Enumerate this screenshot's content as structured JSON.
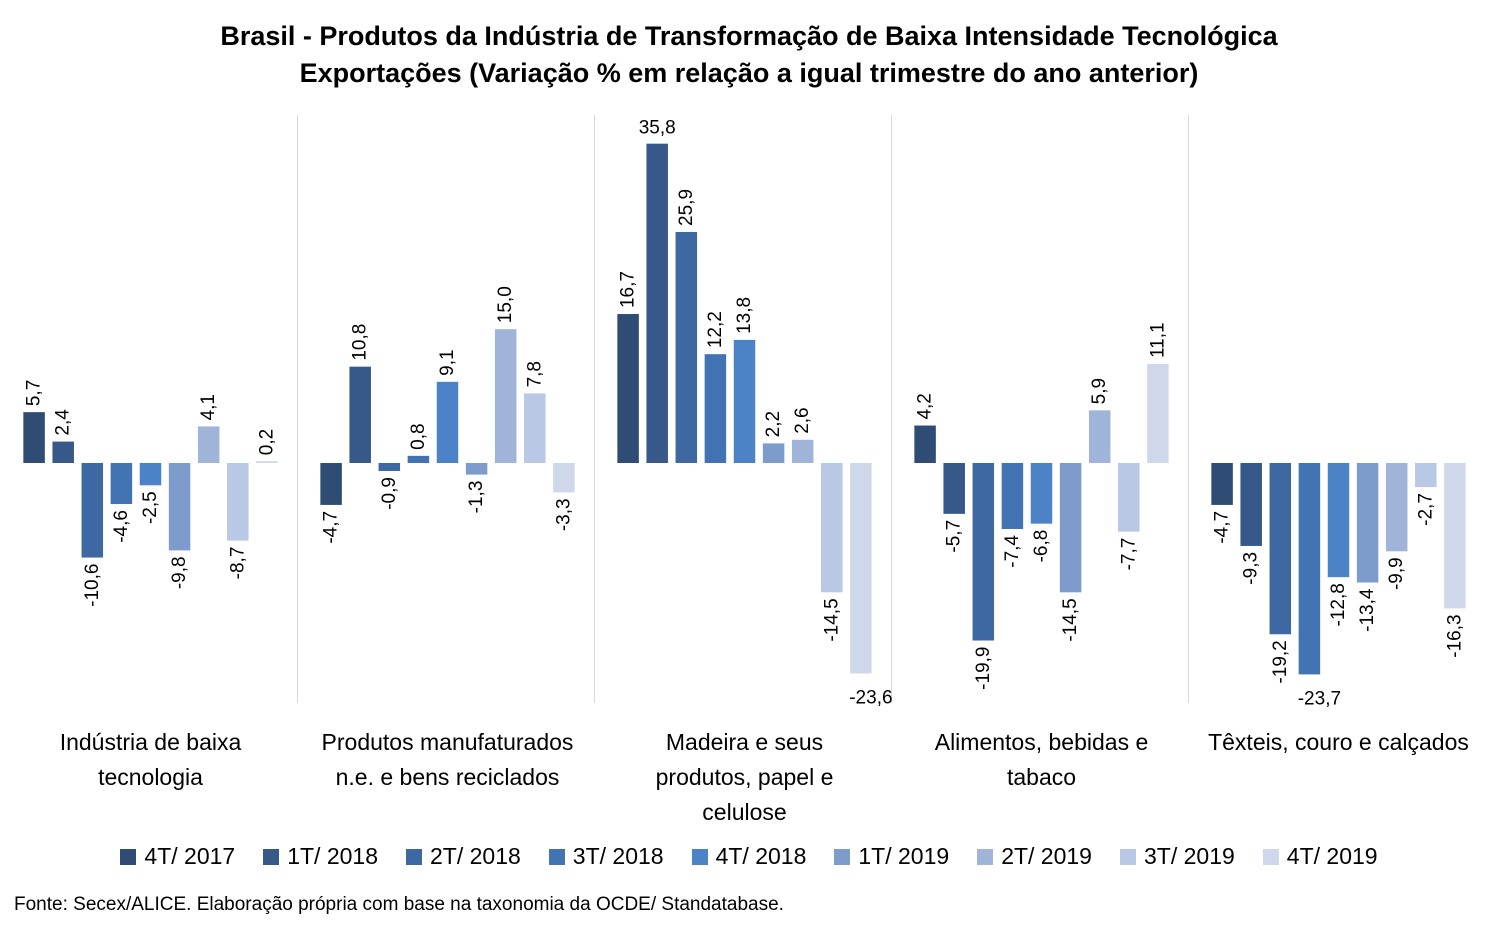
{
  "chart_data": {
    "type": "bar",
    "title": "Brasil - Produtos da Indústria de Transformação de Baixa Intensidade Tecnológica",
    "subtitle": "Exportações (Variação % em relação a igual trimestre do ano anterior)",
    "categories": [
      "Indústria de baixa tecnologia",
      "Produtos manufaturados n.e. e bens reciclados",
      "Madeira e seus produtos, papel e celulose",
      "Alimentos, bebidas e tabaco",
      "Têxteis, couro e calçados"
    ],
    "series": [
      {
        "name": "4T/ 2017",
        "color": "#2f4d74",
        "values": [
          5.7,
          -4.7,
          16.7,
          4.2,
          -4.7
        ]
      },
      {
        "name": "1T/ 2018",
        "color": "#36598a",
        "values": [
          2.4,
          10.8,
          35.8,
          -5.7,
          -9.3
        ]
      },
      {
        "name": "2T/ 2018",
        "color": "#3d68a2",
        "values": [
          -10.6,
          -0.9,
          25.9,
          -19.9,
          -19.2
        ]
      },
      {
        "name": "3T/ 2018",
        "color": "#4273b3",
        "values": [
          -4.6,
          0.8,
          12.2,
          -7.4,
          -23.7
        ]
      },
      {
        "name": "4T/ 2018",
        "color": "#4c82c6",
        "values": [
          -2.5,
          9.1,
          13.8,
          -6.8,
          -12.8
        ]
      },
      {
        "name": "1T/ 2019",
        "color": "#7d9ccc",
        "values": [
          -9.8,
          -1.3,
          2.2,
          -14.5,
          -13.4
        ]
      },
      {
        "name": "2T/ 2019",
        "color": "#9fb4d8",
        "values": [
          4.1,
          15.0,
          2.6,
          5.9,
          -9.9
        ]
      },
      {
        "name": "3T/ 2019",
        "color": "#b9c8e4",
        "values": [
          -8.7,
          7.8,
          -14.5,
          -7.7,
          -2.7
        ]
      },
      {
        "name": "4T/ 2019",
        "color": "#cfd8ea",
        "values": [
          0.2,
          -3.3,
          -23.6,
          11.1,
          -16.3
        ]
      }
    ],
    "value_labels": [
      [
        "5,7",
        "-4,7",
        "16,7",
        "4,2",
        "-4,7"
      ],
      [
        "2,4",
        "10,8",
        "35,8",
        "-5,7",
        "-9,3"
      ],
      [
        "-10,6",
        "-0,9",
        "25,9",
        "-19,9",
        "-19,2"
      ],
      [
        "-4,6",
        "0,8",
        "12,2",
        "-7,4",
        "-23,7"
      ],
      [
        "-2,5",
        "9,1",
        "13,8",
        "-6,8",
        "-12,8"
      ],
      [
        "-9,8",
        "-1,3",
        "2,2",
        "-14,5",
        "-13,4"
      ],
      [
        "4,1",
        "15,0",
        "2,6",
        "5,9",
        "-9,9"
      ],
      [
        "-8,7",
        "7,8",
        "-14,5",
        "-7,7",
        "-2,7"
      ],
      [
        "0,2",
        "-3,3",
        "-23,6",
        "11,1",
        "-16,3"
      ]
    ],
    "category_label_lines": [
      [
        "Indústria de baixa",
        "tecnologia"
      ],
      [
        "Produtos manufaturados",
        "n.e. e bens reciclados"
      ],
      [
        "Madeira e seus",
        "produtos, papel e",
        "celulose"
      ],
      [
        "Alimentos, bebidas e",
        "tabaco"
      ],
      [
        "Têxteis, couro e calçados"
      ]
    ],
    "horizontal_labels": [
      "35,8",
      "-23,6",
      "-23,7"
    ],
    "ylim": [
      -27,
      40
    ],
    "grid": false,
    "legend_position": "bottom",
    "source": "Fonte: Secex/ALICE. Elaboração própria com base na taxonomia da OCDE/ Standatabase."
  }
}
